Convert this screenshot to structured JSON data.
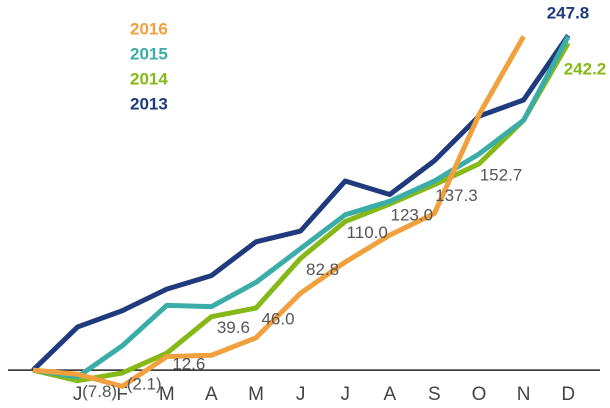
{
  "chart_data": {
    "type": "line",
    "categories": [
      null,
      "J",
      "F",
      "M",
      "A",
      "M",
      "J",
      "J",
      "A",
      "S",
      "O",
      "N",
      "D"
    ],
    "series": [
      {
        "name": "2016",
        "color": "#f0a03c",
        "values": [
          0,
          -3,
          -12,
          10,
          11,
          24,
          57,
          80,
          100,
          116,
          189.1,
          247,
          null
        ],
        "value_labels": [
          null,
          null,
          null,
          null,
          null,
          null,
          null,
          null,
          null,
          null,
          null,
          null,
          null
        ]
      },
      {
        "name": "2015",
        "color": "#3aada8",
        "values": [
          0,
          -5,
          18,
          48,
          47,
          65,
          90,
          115,
          125,
          140,
          160,
          185,
          247.0
        ]
      },
      {
        "name": "2014",
        "color": "#86b817",
        "values": [
          0,
          -7.8,
          -2.1,
          12.6,
          39.6,
          46.0,
          82.8,
          110.0,
          123.0,
          137.3,
          152.7,
          185,
          242.2
        ],
        "value_labels": [
          null,
          "(7.8)",
          "(2.1)",
          "12.6",
          "39.6",
          "46.0",
          "82.8",
          "110.0",
          "123.0",
          "137.3",
          "152.7",
          null,
          "242.2"
        ]
      },
      {
        "name": "2013",
        "color": "#1f3a7d",
        "values": [
          0,
          32,
          44,
          60,
          70,
          95,
          103,
          140,
          130,
          155,
          188,
          200,
          247.8
        ],
        "value_labels": [
          null,
          null,
          null,
          null,
          null,
          null,
          null,
          null,
          null,
          null,
          null,
          null,
          "247.8"
        ]
      }
    ],
    "ylim": [
      -28,
      274
    ]
  }
}
